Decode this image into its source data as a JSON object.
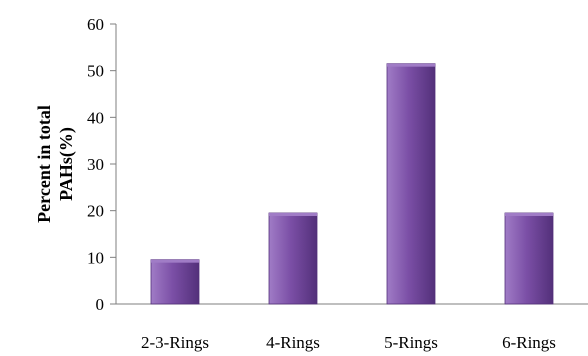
{
  "chart_data": {
    "type": "bar",
    "categories": [
      "2-3-Rings",
      "4-Rings",
      "5-Rings",
      "6-Rings"
    ],
    "values": [
      9.5,
      19.5,
      51.5,
      19.5
    ],
    "title": "",
    "xlabel": "",
    "ylabel_lines": [
      "Percent in total",
      "PAHs(%)"
    ],
    "ylim": [
      0,
      60
    ],
    "yticks": [
      0,
      10,
      20,
      30,
      40,
      50,
      60
    ],
    "grid": false,
    "legend": "none",
    "colors": {
      "bar_fill": "#7b4fa6",
      "bar_light": "#a07cc6",
      "bar_dark": "#53307a",
      "axis": "#7f7f7f"
    }
  }
}
